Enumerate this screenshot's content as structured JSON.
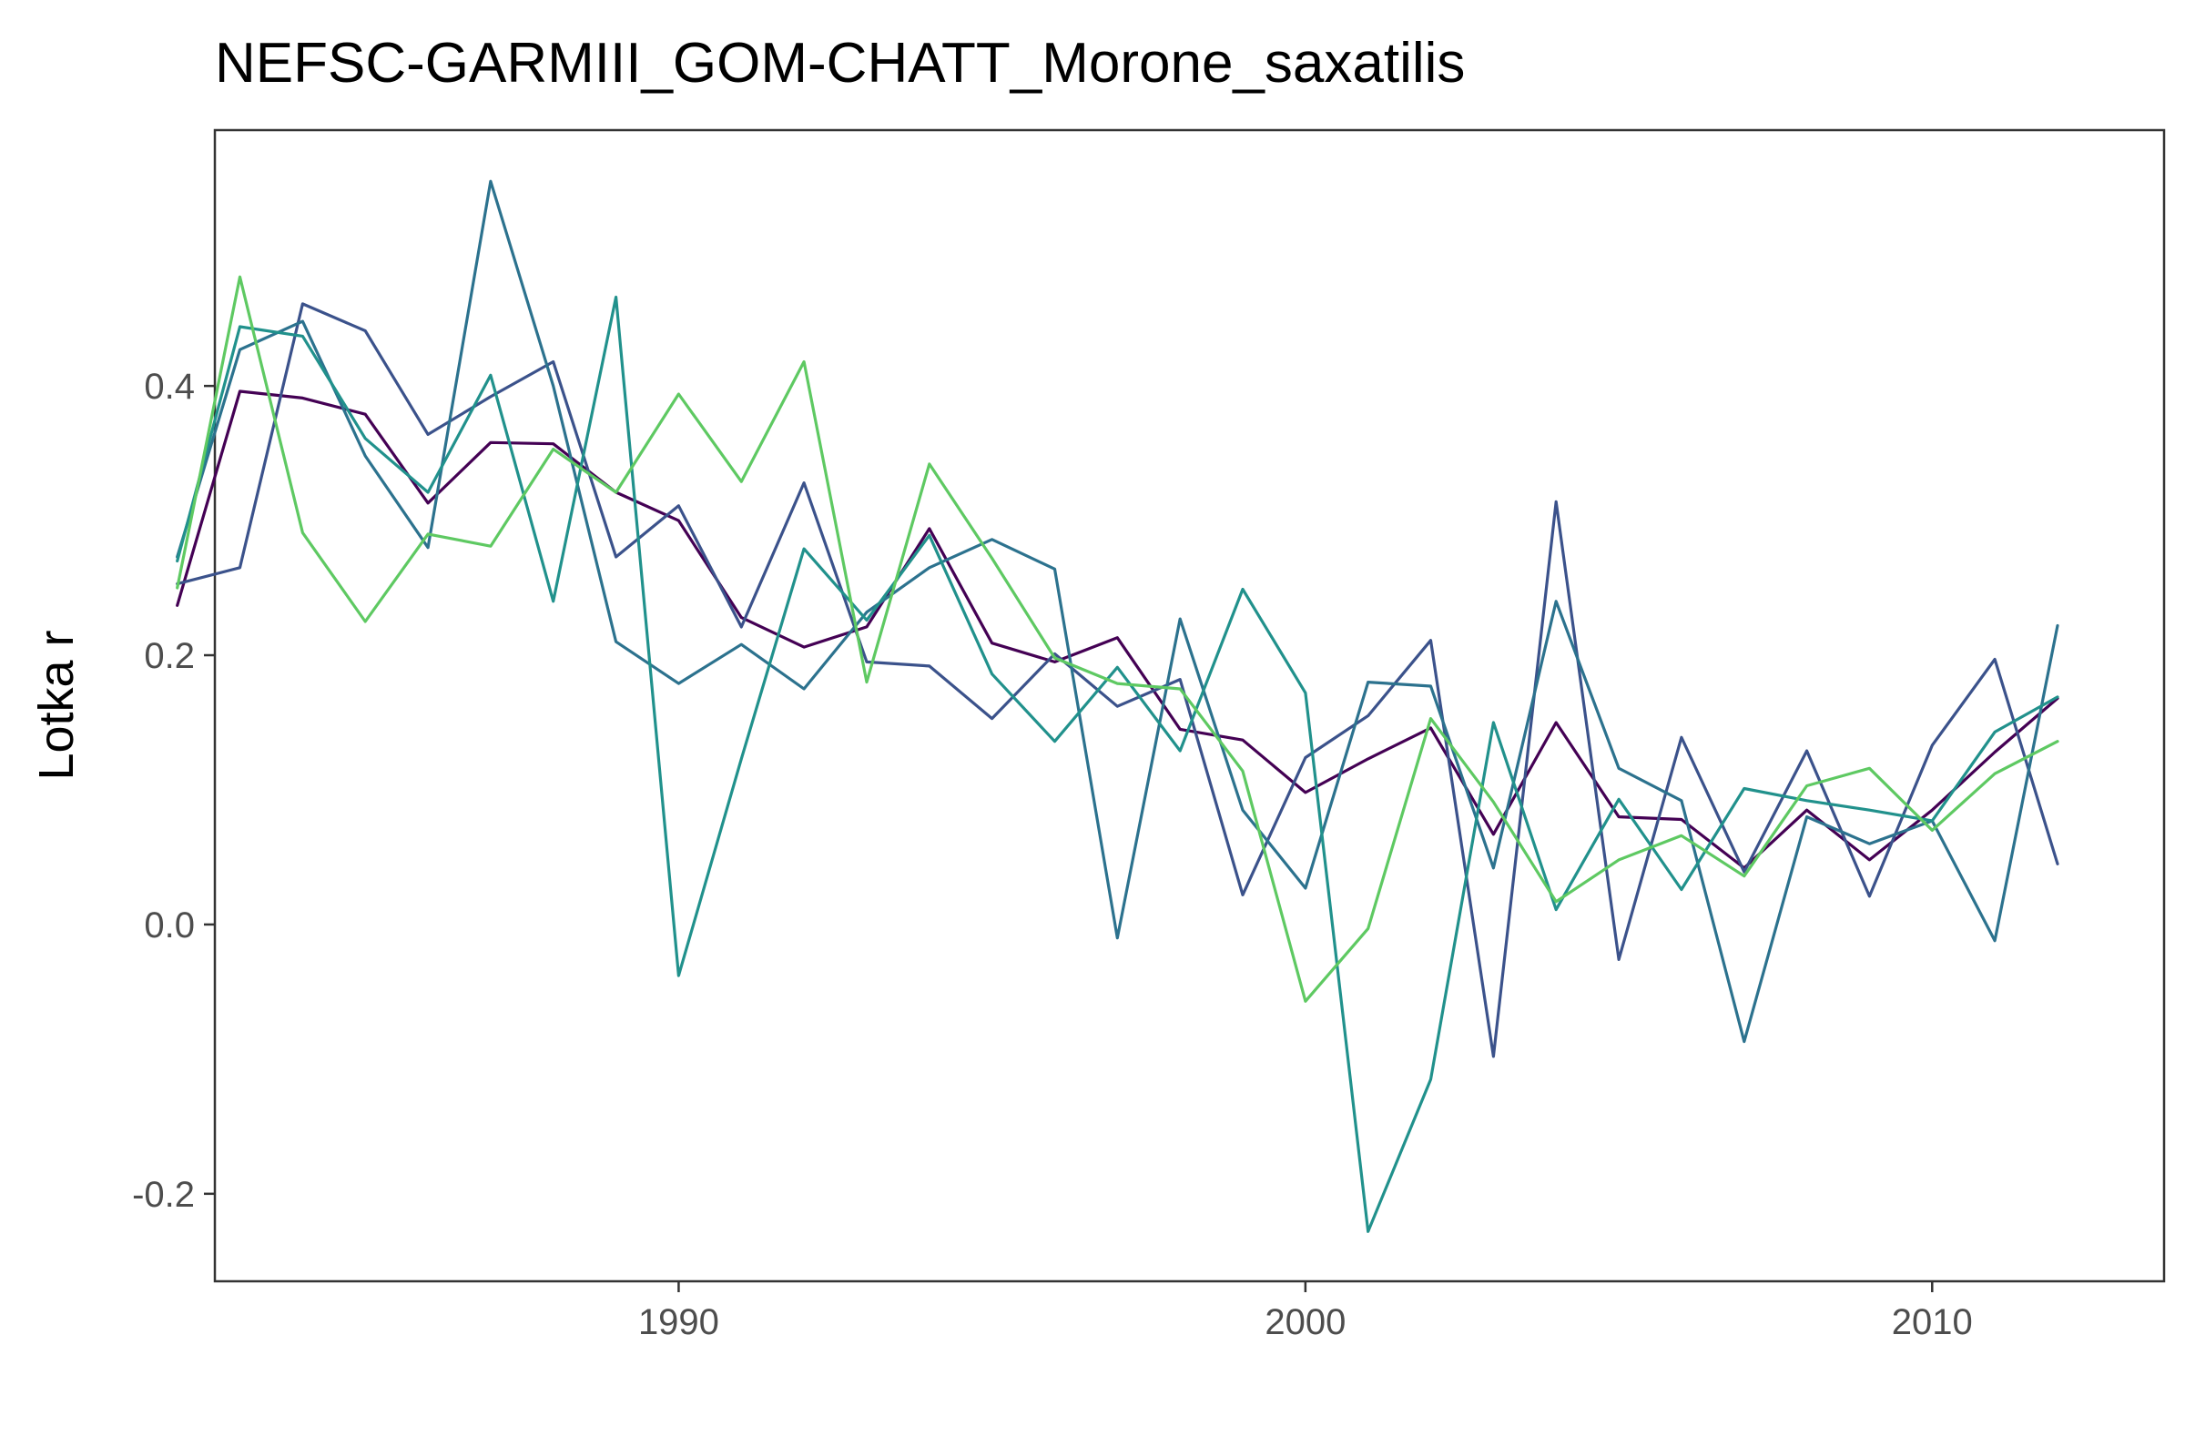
{
  "chart_data": {
    "type": "line",
    "title": "NEFSC-GARMIII_GOM-CHATT_Morone_saxatilis",
    "xlabel": "",
    "ylabel": "Lotka r",
    "xlim": [
      1982.6,
      2013.7
    ],
    "ylim": [
      -0.265,
      0.59
    ],
    "xticks": [
      1990,
      2000,
      2010
    ],
    "xtick_labels": [
      "1990",
      "2000",
      "2010"
    ],
    "yticks": [
      -0.2,
      0.0,
      0.2,
      0.4
    ],
    "ytick_labels": [
      "-0.2",
      "0.0",
      "0.2",
      "0.4"
    ],
    "grid": false,
    "legend": "none",
    "x": [
      1982,
      1983,
      1984,
      1985,
      1986,
      1987,
      1988,
      1989,
      1990,
      1991,
      1992,
      1993,
      1994,
      1995,
      1996,
      1997,
      1998,
      1999,
      2000,
      2001,
      2002,
      2003,
      2004,
      2005,
      2006,
      2007,
      2008,
      2009,
      2010,
      2011,
      2012
    ],
    "series": [
      {
        "color": "#440154",
        "values": [
          0.237,
          0.396,
          0.391,
          0.379,
          0.313,
          0.358,
          0.357,
          0.321,
          0.3,
          0.228,
          0.206,
          0.221,
          0.294,
          0.209,
          0.195,
          0.213,
          0.145,
          0.137,
          0.098,
          0.123,
          0.146,
          0.067,
          0.15,
          0.08,
          0.078,
          0.042,
          0.085,
          0.048,
          0.085,
          0.128,
          0.168
        ]
      },
      {
        "color": "#3b528b",
        "values": [
          0.253,
          0.265,
          0.461,
          0.441,
          0.364,
          0.392,
          0.418,
          0.273,
          0.311,
          0.221,
          0.328,
          0.195,
          0.192,
          0.153,
          0.201,
          0.162,
          0.182,
          0.022,
          0.124,
          0.155,
          0.211,
          -0.098,
          0.314,
          -0.026,
          0.139,
          0.039,
          0.129,
          0.021,
          0.133,
          0.197,
          0.045
        ]
      },
      {
        "color": "#2c728e",
        "values": [
          0.273,
          0.427,
          0.448,
          0.348,
          0.28,
          0.552,
          0.4,
          0.21,
          0.179,
          0.208,
          0.175,
          0.232,
          0.265,
          0.286,
          0.264,
          -0.01,
          0.227,
          0.085,
          0.027,
          0.18,
          0.177,
          0.042,
          0.24,
          0.116,
          0.092,
          -0.087,
          0.08,
          0.06,
          0.077,
          -0.012,
          0.222
        ]
      },
      {
        "color": "#21918c",
        "values": [
          0.27,
          0.444,
          0.437,
          0.361,
          0.321,
          0.408,
          0.24,
          0.466,
          -0.038,
          0.123,
          0.279,
          0.226,
          0.289,
          0.186,
          0.136,
          0.191,
          0.129,
          0.249,
          0.172,
          -0.228,
          -0.115,
          0.15,
          0.011,
          0.093,
          0.026,
          0.101,
          0.092,
          0.085,
          0.077,
          0.143,
          0.169
        ]
      },
      {
        "color": "#5ec962",
        "values": [
          0.25,
          0.481,
          0.291,
          0.225,
          0.29,
          0.281,
          0.353,
          0.321,
          0.394,
          0.329,
          0.418,
          0.18,
          0.342,
          0.272,
          0.198,
          0.179,
          0.175,
          0.114,
          -0.057,
          -0.003,
          0.153,
          0.091,
          0.017,
          0.048,
          0.066,
          0.036,
          0.103,
          0.116,
          0.07,
          0.112,
          0.136
        ]
      }
    ]
  }
}
